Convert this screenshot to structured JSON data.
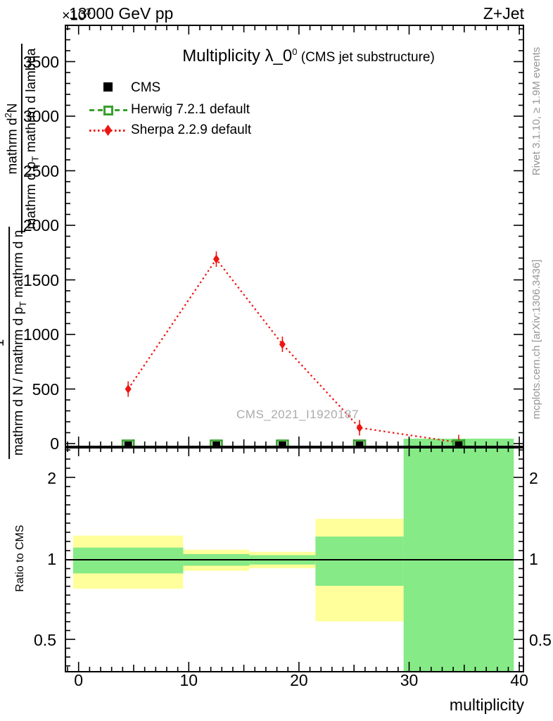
{
  "header": {
    "multiplier": "×10",
    "multiplier_exp": "3",
    "energy": "13000 GeV pp",
    "process": "Z+Jet"
  },
  "title": {
    "main": "Multiplicity λ_0",
    "sup": "0",
    "paren": " (CMS jet substructure)"
  },
  "legend": {
    "cms": "CMS",
    "herwig": "Herwig 7.2.1 default",
    "sherpa": "Sherpa 2.2.9 default"
  },
  "ylabel": {
    "upper": {
      "num": "mathrm d",
      "num_sup": "2",
      "num_tail": "N",
      "den": "mathrm d p",
      "den_sub": "T",
      "den_tail": " mathrm d lambda"
    },
    "lower": {
      "num": "1",
      "den": "mathrm d N / mathrm d p",
      "den_sub": "T",
      "den_tail": " mathrm d η"
    }
  },
  "ratio_axis_label": "Ratio to CMS",
  "xlabel": "multiplicity",
  "watermark": "CMS_2021_I1920187",
  "side_notes": {
    "rivet": "Rivet 3.1.10, ≥ 1.9M events",
    "mcplots": "mcplots.cern.ch [arXiv:1306.3436]"
  },
  "colors": {
    "sherpa_red": "#ee1610",
    "herwig_green": "#37a02c",
    "band_green": "#86ea86",
    "band_yellow": "#ffff9c",
    "gray_text": "#969696",
    "watermark_gray": "#ababab",
    "frame": "#000000"
  },
  "chart_data": {
    "type": "line",
    "title": "Multiplicity λ_0^0 (CMS jet substructure)",
    "xlabel": "multiplicity",
    "ylabel": "1/(dN/dp_T dη) d²N/(dp_T dlambda)",
    "y_unit_multiplier": "×10^3",
    "x_frame_range": [
      -1.3,
      40.4
    ],
    "x_ticks": [
      {
        "value": 0,
        "label": "0"
      },
      {
        "value": 10,
        "label": "10"
      },
      {
        "value": 20,
        "label": "20"
      },
      {
        "value": 30,
        "label": "30"
      },
      {
        "value": 40,
        "label": "40"
      }
    ],
    "y_main_ticks": [
      {
        "value": 3500,
        "label": "3500"
      },
      {
        "value": 3000,
        "label": "3000"
      },
      {
        "value": 2500,
        "label": "2500"
      },
      {
        "value": 2000,
        "label": "2000"
      },
      {
        "value": 1500,
        "label": "1500"
      },
      {
        "value": 1000,
        "label": "1000"
      },
      {
        "value": 500,
        "label": "500"
      },
      {
        "value": 0,
        "label": "0"
      }
    ],
    "y_main_minor_step": 100,
    "y_main_top": 3840,
    "bin_edges": [
      -0.5,
      9.5,
      15.5,
      21.5,
      29.5,
      39.5
    ],
    "bin_centers": [
      4.5,
      12.5,
      18.5,
      25.5,
      34.5
    ],
    "series": [
      {
        "name": "CMS",
        "marker": "filled-black-square",
        "values": [
          0,
          0,
          0,
          0,
          0
        ]
      },
      {
        "name": "Herwig 7.2.1 default",
        "marker": "open-green-square-dashed-line",
        "values": [
          0,
          0,
          0,
          0,
          0
        ]
      },
      {
        "name": "Sherpa 2.2.9 default",
        "marker": "filled-red-diamond-dotted-line",
        "values": [
          500,
          1690,
          910,
          145,
          10
        ]
      }
    ],
    "herwig_band_last_bin_main": [
      0,
      45
    ],
    "ratio": {
      "scale": "log",
      "reference_line": 1.0,
      "ticks": [
        {
          "value": 2,
          "label": "2"
        },
        {
          "value": 1,
          "label": "1"
        },
        {
          "value": 0.5,
          "label": "0.5"
        }
      ],
      "range": [
        0.38,
        2.62
      ],
      "bands": [
        {
          "bin": [
            -0.5,
            9.5
          ],
          "yellow": [
            0.78,
            1.23
          ],
          "green": [
            0.89,
            1.11
          ]
        },
        {
          "bin": [
            9.5,
            15.5
          ],
          "yellow": [
            0.91,
            1.09
          ],
          "green": [
            0.95,
            1.05
          ]
        },
        {
          "bin": [
            15.5,
            21.5
          ],
          "yellow": [
            0.93,
            1.07
          ],
          "green": [
            0.96,
            1.04
          ]
        },
        {
          "bin": [
            21.5,
            29.5
          ],
          "yellow": [
            0.59,
            1.42
          ],
          "green": [
            0.8,
            1.22
          ]
        },
        {
          "bin": [
            29.5,
            39.5
          ],
          "yellow": null,
          "green": [
            0.38,
            2.62
          ]
        }
      ]
    }
  }
}
